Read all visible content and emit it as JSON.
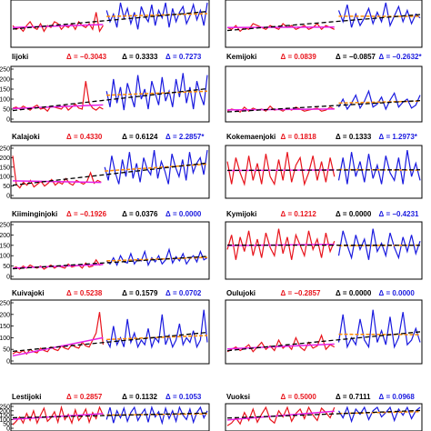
{
  "colors": {
    "period1": "#e8141c",
    "period2": "#1a1adf",
    "trend_full": "#000000",
    "trend_period1": "#e620e6",
    "trend_period2": "#ff8a00",
    "delta1": "#e8141c",
    "delta0": "#000000",
    "delta2": "#1a1adf"
  },
  "chart_data": [
    {
      "type": "line",
      "panel": "Iijoki-series",
      "column": "left",
      "yticks": [],
      "ylim": [
        0,
        110
      ],
      "period1": [
        50,
        40,
        45,
        35,
        50,
        60,
        45,
        40,
        55,
        35,
        50,
        45,
        60,
        55,
        40,
        50,
        45,
        55,
        40,
        60,
        50,
        45,
        55,
        40,
        85,
        35,
        50
      ],
      "period2": [
        90,
        60,
        80,
        45,
        110,
        70,
        95,
        55,
        85,
        40,
        100,
        75,
        60,
        105,
        50,
        90,
        70,
        110,
        45,
        95,
        60,
        85,
        100,
        55,
        75,
        105,
        65,
        90,
        50,
        110
      ]
    },
    {
      "type": "line",
      "panel": "Kemijoki-series",
      "column": "right",
      "yticks": [],
      "ylim": [
        0,
        110
      ],
      "period1": [
        45,
        40,
        50,
        35,
        45,
        40,
        55,
        50,
        45,
        40,
        50,
        45,
        40,
        55,
        45,
        50,
        40,
        45,
        50,
        40,
        45,
        55,
        40,
        50,
        45,
        40
      ],
      "period2": [
        90,
        60,
        105,
        45,
        80,
        50,
        70,
        95,
        55,
        85,
        60,
        110,
        50,
        75,
        100,
        60,
        90,
        55,
        80,
        70
      ]
    },
    {
      "type": "line",
      "panel": "Iijoki",
      "column": "left",
      "name": "Iijoki",
      "deltas": [
        "Δ = −0.3043",
        "Δ = 0.3333",
        "Δ = 0.7273"
      ],
      "delta2_star": false,
      "yticks": [
        0,
        50,
        100,
        150,
        200,
        250
      ],
      "ylim": [
        0,
        250
      ],
      "period1": [
        55,
        60,
        50,
        65,
        55,
        45,
        60,
        70,
        50,
        55,
        40,
        65,
        60,
        55,
        50,
        70,
        45,
        60,
        75,
        55,
        50,
        190,
        80,
        55,
        45,
        60,
        50
      ],
      "period2": [
        140,
        60,
        200,
        80,
        160,
        45,
        180,
        120,
        60,
        220,
        100,
        150,
        50,
        190,
        130,
        70,
        210,
        90,
        140,
        60,
        200,
        110,
        230,
        80,
        160,
        50,
        190,
        120,
        70,
        220
      ]
    },
    {
      "type": "line",
      "panel": "Kemijoki",
      "column": "right",
      "name": "Kemijoki",
      "deltas": [
        "Δ = 0.0839",
        "Δ = −0.0857",
        "Δ = −0.2632"
      ],
      "delta2_star": true,
      "yticks": [],
      "ylim": [
        0,
        250
      ],
      "period1": [
        40,
        50,
        45,
        35,
        60,
        40,
        55,
        45,
        50,
        40,
        65,
        45,
        50,
        40,
        55,
        45,
        60,
        50,
        40,
        45,
        50,
        55,
        40,
        45,
        60,
        50
      ],
      "period2": [
        60,
        100,
        50,
        80,
        120,
        55,
        90,
        140,
        60,
        75,
        110,
        50,
        95,
        130,
        60,
        85,
        100,
        55,
        70,
        120
      ]
    },
    {
      "type": "line",
      "panel": "Kalajoki",
      "column": "left",
      "name": "Kalajoki",
      "deltas": [
        "Δ = 0.4330",
        "Δ = 0.6124",
        "Δ = 2.2857"
      ],
      "delta2_star": true,
      "yticks": [
        0,
        50,
        100,
        150,
        200,
        250
      ],
      "ylim": [
        0,
        250
      ],
      "period1": [
        210,
        60,
        40,
        70,
        55,
        80,
        45,
        60,
        75,
        50,
        65,
        85,
        55,
        70,
        60,
        90,
        65,
        55,
        80,
        70,
        60,
        75,
        120,
        65,
        80,
        70
      ],
      "period2": [
        150,
        80,
        210,
        120,
        60,
        190,
        100,
        230,
        90,
        170,
        70,
        200,
        140,
        110,
        240,
        90,
        180,
        130,
        60,
        220,
        150,
        100,
        190,
        80,
        230,
        120,
        170,
        200,
        110,
        240
      ]
    },
    {
      "type": "line",
      "panel": "Kokemaenjoki",
      "column": "right",
      "name": "Kokemaenjoki",
      "deltas": [
        "Δ = 0.1818",
        "Δ = 0.1333",
        "Δ = 1.2973"
      ],
      "delta2_star": true,
      "yticks": [],
      "ylim": [
        0,
        250
      ],
      "period1": [
        180,
        60,
        200,
        120,
        60,
        210,
        80,
        170,
        60,
        220,
        100,
        60,
        190,
        80,
        230,
        70,
        160,
        200,
        60,
        120,
        210,
        80,
        180,
        70,
        200,
        100
      ],
      "period2": [
        80,
        200,
        60,
        230,
        100,
        180,
        70,
        220,
        90,
        160,
        60,
        210,
        120,
        80,
        200,
        60,
        240,
        100,
        170,
        80
      ]
    },
    {
      "type": "line",
      "panel": "Kiiminginjoki",
      "column": "left",
      "name": "Kiiminginjoki",
      "deltas": [
        "Δ = −0.1926",
        "Δ = 0.0376",
        "Δ = 0.0000"
      ],
      "delta2_star": false,
      "yticks": [
        0,
        50,
        100,
        150,
        200,
        250
      ],
      "ylim": [
        0,
        250
      ],
      "period1": [
        40,
        45,
        35,
        50,
        40,
        55,
        45,
        40,
        50,
        35,
        45,
        55,
        40,
        50,
        45,
        40,
        60,
        45,
        50,
        55,
        40,
        65,
        45,
        50,
        80,
        55,
        60
      ],
      "period2": [
        75,
        60,
        90,
        55,
        100,
        70,
        65,
        110,
        60,
        85,
        75,
        120,
        55,
        90,
        70,
        100,
        60,
        80,
        130,
        65,
        95,
        75,
        110,
        60,
        85,
        100,
        70,
        120,
        80,
        90
      ]
    },
    {
      "type": "line",
      "panel": "Kymijoki",
      "column": "right",
      "name": "Kymijoki",
      "deltas": [
        "Δ = 0.1212",
        "Δ = 0.0000",
        "Δ = −0.4231"
      ],
      "delta2_star": false,
      "yticks": [],
      "ylim": [
        0,
        250
      ],
      "period1": [
        130,
        200,
        80,
        190,
        120,
        220,
        100,
        180,
        90,
        210,
        140,
        100,
        230,
        110,
        190,
        80,
        200,
        150,
        100,
        220,
        130,
        180,
        90,
        210,
        120,
        170
      ],
      "period2": [
        100,
        220,
        150,
        90,
        200,
        130,
        180,
        80,
        230,
        120,
        160,
        100,
        210,
        140,
        90,
        190,
        120,
        200,
        110,
        170
      ]
    },
    {
      "type": "line",
      "panel": "Kuivajoki",
      "column": "left",
      "name": "Kuivajoki",
      "deltas": [
        "Δ = 0.5238",
        "Δ = 0.1579",
        "Δ = 0.0702"
      ],
      "delta2_star": false,
      "yticks": [
        0,
        50,
        100,
        150,
        200,
        250
      ],
      "ylim": [
        0,
        250
      ],
      "period1": [
        30,
        40,
        35,
        45,
        30,
        50,
        40,
        35,
        55,
        45,
        40,
        60,
        50,
        45,
        65,
        55,
        50,
        70,
        60,
        55,
        80,
        65,
        60,
        90,
        120,
        210,
        70
      ],
      "period2": [
        90,
        60,
        150,
        70,
        100,
        60,
        180,
        80,
        120,
        60,
        90,
        70,
        140,
        60,
        100,
        80,
        200,
        70,
        110,
        60,
        90,
        160,
        70,
        100,
        80,
        130,
        60,
        90,
        220,
        80
      ]
    },
    {
      "type": "line",
      "panel": "Oulujoki",
      "column": "right",
      "name": "Oulujoki",
      "deltas": [
        "Δ = −0.2857",
        "Δ = 0.0000",
        "Δ = 0.0000"
      ],
      "delta2_star": false,
      "yticks": [],
      "ylim": [
        0,
        250
      ],
      "period1": [
        40,
        50,
        60,
        45,
        55,
        70,
        40,
        60,
        80,
        50,
        65,
        45,
        90,
        55,
        70,
        50,
        100,
        60,
        45,
        80,
        55,
        65,
        110,
        50,
        70,
        60
      ],
      "period2": [
        80,
        200,
        60,
        100,
        70,
        180,
        90,
        60,
        220,
        80,
        130,
        70,
        190,
        60,
        100,
        210,
        70,
        90,
        140,
        80
      ]
    },
    {
      "type": "line",
      "panel": "Lestijoki",
      "column": "left",
      "name": "Lestijoki",
      "deltas": [
        "Δ = 0.2857",
        "Δ = 0.1132",
        "Δ = 0.1053"
      ],
      "delta2_star": false,
      "yticks": [
        0,
        50,
        100,
        150,
        200,
        250
      ],
      "ylim": [
        0,
        250
      ],
      "period1": [
        40,
        80,
        130,
        60,
        170,
        90,
        200,
        60,
        150,
        230,
        80,
        120,
        190,
        70,
        240,
        100,
        160,
        60,
        210,
        90,
        140,
        220,
        70,
        180,
        110,
        240,
        150
      ],
      "period2": [
        100,
        240,
        60,
        200,
        120,
        230,
        80,
        180,
        240,
        90,
        160,
        220,
        70,
        240,
        130,
        190,
        60,
        230,
        110,
        200,
        80,
        240,
        150,
        100,
        220,
        70,
        180,
        240,
        120,
        200
      ]
    },
    {
      "type": "line",
      "panel": "Vuoksi",
      "column": "right",
      "name": "Vuoksi",
      "deltas": [
        "Δ = 0.5000",
        "Δ = 0.7111",
        "Δ = 0.0968"
      ],
      "delta2_star": false,
      "yticks": [],
      "ylim": [
        0,
        250
      ],
      "period1": [
        30,
        60,
        120,
        50,
        180,
        90,
        220,
        70,
        160,
        240,
        100,
        60,
        200,
        130,
        240,
        80,
        170,
        220,
        110,
        240,
        150,
        90,
        230,
        180,
        120,
        240
      ],
      "period2": [
        200,
        120,
        240,
        80,
        220,
        160,
        240,
        100,
        200,
        240,
        130,
        180,
        240,
        90,
        220,
        150,
        240,
        110,
        200,
        240
      ]
    }
  ]
}
